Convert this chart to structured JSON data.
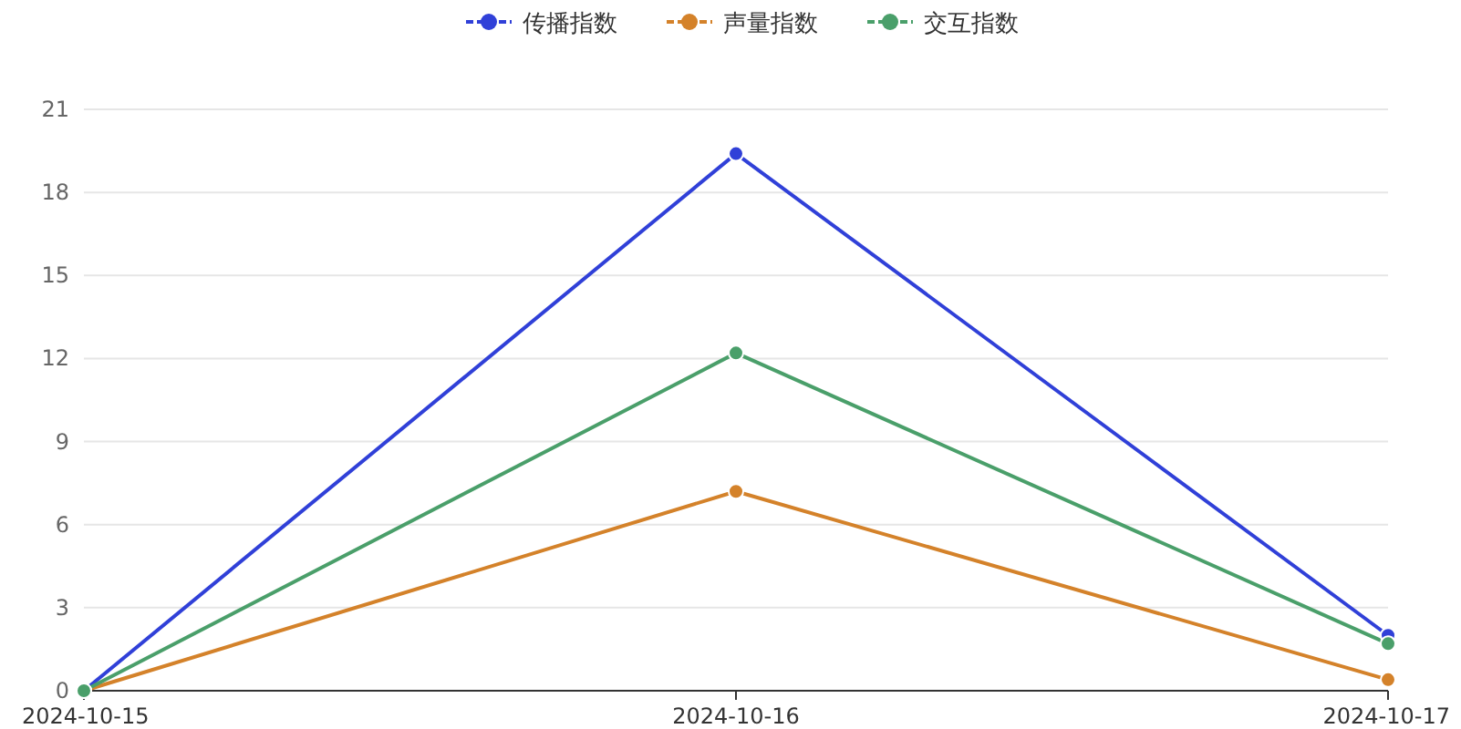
{
  "chart_data": {
    "type": "line",
    "categories": [
      "2024-10-15",
      "2024-10-16",
      "2024-10-17"
    ],
    "series": [
      {
        "name": "传播指数",
        "color": "#3040d8",
        "values": [
          0,
          19.4,
          2.0
        ]
      },
      {
        "name": "声量指数",
        "color": "#d4822a",
        "values": [
          0,
          7.2,
          0.4
        ]
      },
      {
        "name": "交互指数",
        "color": "#4a9f6a",
        "values": [
          0,
          12.2,
          1.7
        ]
      }
    ],
    "ylim": [
      0,
      21
    ],
    "yticks": [
      0,
      3,
      6,
      9,
      12,
      15,
      18,
      21
    ],
    "grid": "y",
    "legend": "top",
    "marker": "circle"
  }
}
